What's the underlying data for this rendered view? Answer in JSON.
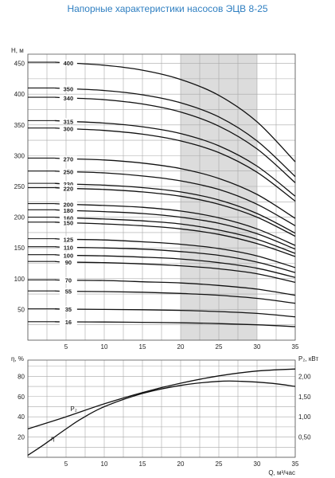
{
  "title": "Напорные характеристики насосов ЭЦВ 8-25",
  "colors": {
    "title": "#2f7fc1",
    "curve": "#111111",
    "grid": "#a8a8a8",
    "shade": "#dcdcdc"
  },
  "chart_data": [
    {
      "type": "line",
      "title": "Напорные характеристики насосов ЭЦВ 8-25",
      "ylabel": "H, м",
      "xlabel": "Q, м³/час",
      "xlim": [
        0,
        35
      ],
      "ylim": [
        0,
        465
      ],
      "xticks": [
        5,
        10,
        15,
        20,
        25,
        30,
        35
      ],
      "yticks": [
        50,
        100,
        150,
        200,
        250,
        300,
        350,
        400,
        450
      ],
      "grid": true,
      "shaded_range": [
        20,
        30
      ],
      "x": [
        3.5,
        5,
        10,
        15,
        20,
        25,
        30,
        35
      ],
      "series": [
        {
          "name": "400",
          "values": [
            452,
            451,
            447,
            439,
            424,
            398,
            355,
            290
          ]
        },
        {
          "name": "350",
          "values": [
            410,
            409,
            406,
            399,
            386,
            363,
            324,
            266
          ]
        },
        {
          "name": "340",
          "values": [
            395,
            394,
            391,
            384,
            371,
            348,
            311,
            256
          ]
        },
        {
          "name": "315",
          "values": [
            357,
            356,
            353,
            347,
            336,
            316,
            283,
            234
          ]
        },
        {
          "name": "300",
          "values": [
            345,
            344,
            341,
            335,
            324,
            305,
            273,
            226
          ]
        },
        {
          "name": "270",
          "values": [
            296,
            295,
            293,
            288,
            279,
            263,
            237,
            198
          ]
        },
        {
          "name": "250",
          "values": [
            275,
            274,
            272,
            267,
            259,
            245,
            221,
            186
          ]
        },
        {
          "name": "230",
          "values": [
            255,
            254,
            252,
            248,
            241,
            228,
            206,
            174
          ]
        },
        {
          "name": "220",
          "values": [
            248,
            247,
            245,
            241,
            234,
            221,
            200,
            169
          ]
        },
        {
          "name": "200",
          "values": [
            222,
            221,
            219,
            216,
            210,
            199,
            181,
            154
          ]
        },
        {
          "name": "180",
          "values": [
            212,
            211,
            209,
            206,
            200,
            190,
            173,
            148
          ]
        },
        {
          "name": "160",
          "values": [
            200,
            199,
            197,
            194,
            189,
            179,
            164,
            141
          ]
        },
        {
          "name": "150",
          "values": [
            192,
            191,
            189,
            186,
            181,
            172,
            157,
            136
          ]
        },
        {
          "name": "125",
          "values": [
            165,
            164,
            163,
            160,
            156,
            149,
            137,
            118
          ]
        },
        {
          "name": "110",
          "values": [
            152,
            151,
            150,
            148,
            144,
            138,
            127,
            110
          ]
        },
        {
          "name": "100",
          "values": [
            139,
            138,
            137,
            135,
            132,
            126,
            117,
            102
          ]
        },
        {
          "name": "90",
          "values": [
            128,
            127,
            126,
            124,
            121,
            116,
            108,
            94
          ]
        },
        {
          "name": "70",
          "values": [
            98,
            97.5,
            97,
            95,
            93,
            89,
            83,
            73
          ]
        },
        {
          "name": "55",
          "values": [
            80,
            79.5,
            79,
            78,
            76,
            73,
            68,
            60
          ]
        },
        {
          "name": "35",
          "values": [
            51,
            50.5,
            50,
            49.5,
            48.5,
            46.5,
            43.5,
            38
          ]
        },
        {
          "name": "16",
          "values": [
            30,
            29.8,
            29.5,
            29,
            28.3,
            27,
            25,
            22
          ]
        }
      ]
    },
    {
      "type": "line",
      "ylabel": "η, %",
      "y2label": "P₂, кВт",
      "xlabel": "Q, м³/час",
      "xlim": [
        0,
        35
      ],
      "ylim": [
        0,
        96
      ],
      "y2lim": [
        0,
        2.4
      ],
      "xticks": [
        5,
        10,
        15,
        20,
        25,
        30,
        35
      ],
      "yticks": [
        20,
        40,
        60,
        80
      ],
      "y2ticks": [
        "0,50",
        "1,00",
        "1,50",
        "2,00"
      ],
      "grid": true,
      "series": [
        {
          "name": "η",
          "axis": "left",
          "x": [
            0,
            2,
            5,
            7,
            10,
            15,
            20,
            25,
            28,
            32,
            35
          ],
          "values": [
            2,
            12,
            28,
            38,
            50,
            63,
            71,
            75,
            75,
            73,
            70
          ]
        },
        {
          "name": "P₂",
          "axis": "right",
          "x": [
            0,
            5,
            10,
            15,
            20,
            25,
            30,
            35
          ],
          "values": [
            0.7,
            1.0,
            1.32,
            1.6,
            1.83,
            2.01,
            2.13,
            2.18
          ]
        }
      ]
    }
  ]
}
